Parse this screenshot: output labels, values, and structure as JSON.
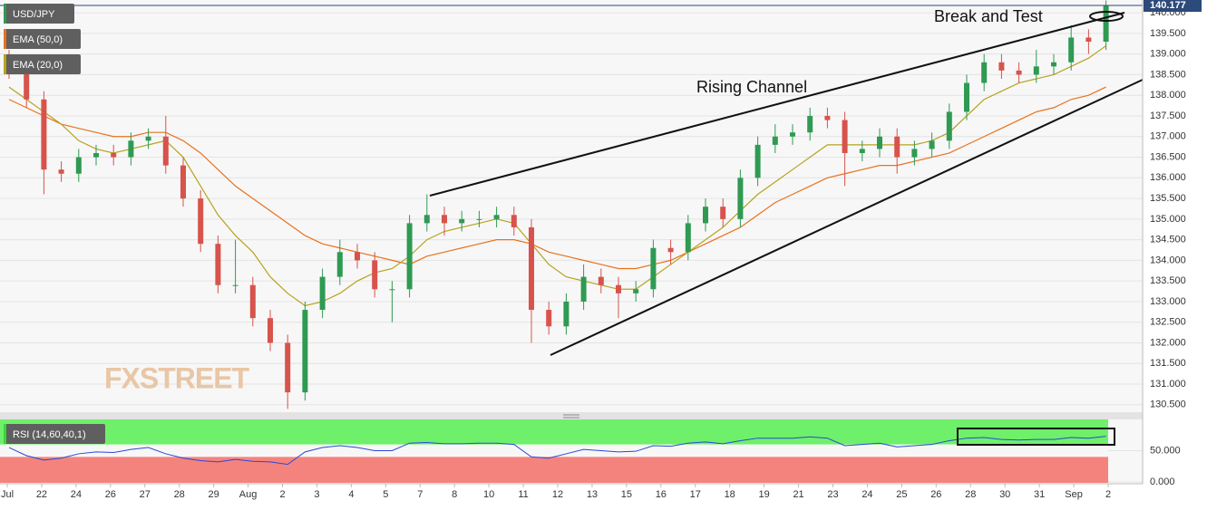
{
  "chart_data": {
    "type": "candlestick",
    "symbol": "USD/JPY",
    "last_price": {
      "value": 140.177,
      "label": "140.177"
    },
    "annotations": [
      "Break and Test",
      "Rising Channel"
    ],
    "watermark": "FXSTREET",
    "up_color": "#2f9a52",
    "down_color": "#d7534c",
    "ylim": [
      130.32,
      140.31
    ],
    "yticks": [
      {
        "value": 130.5,
        "label": "130.500"
      },
      {
        "value": 131,
        "label": "131.000"
      },
      {
        "value": 131.5,
        "label": "131.500"
      },
      {
        "value": 132,
        "label": "132.000"
      },
      {
        "value": 132.5,
        "label": "132.500"
      },
      {
        "value": 133,
        "label": "133.000"
      },
      {
        "value": 133.5,
        "label": "133.500"
      },
      {
        "value": 134,
        "label": "134.000"
      },
      {
        "value": 134.5,
        "label": "134.500"
      },
      {
        "value": 135,
        "label": "135.000"
      },
      {
        "value": 135.5,
        "label": "135.500"
      },
      {
        "value": 136,
        "label": "136.000"
      },
      {
        "value": 136.5,
        "label": "136.500"
      },
      {
        "value": 137,
        "label": "137.000"
      },
      {
        "value": 137.5,
        "label": "137.500"
      },
      {
        "value": 138,
        "label": "138.000"
      },
      {
        "value": 138.5,
        "label": "138.500"
      },
      {
        "value": 139,
        "label": "139.000"
      },
      {
        "value": 139.5,
        "label": "139.500"
      },
      {
        "value": 140,
        "label": "140.000"
      }
    ],
    "x_labels": [
      "Jul",
      "22",
      "24",
      "26",
      "27",
      "28",
      "29",
      "Aug",
      "2",
      "3",
      "4",
      "5",
      "7",
      "8",
      "10",
      "11",
      "12",
      "13",
      "15",
      "16",
      "17",
      "18",
      "19",
      "21",
      "23",
      "24",
      "25",
      "26",
      "28",
      "30",
      "31",
      "Sep",
      "2"
    ],
    "open": [
      138.9,
      138.6,
      137.9,
      136.2,
      136.1,
      136.5,
      136.6,
      136.5,
      136.9,
      137.0,
      136.3,
      135.5,
      134.4,
      133.4,
      133.4,
      132.6,
      132.0,
      130.8,
      132.8,
      133.6,
      134.2,
      134.0,
      133.3,
      133.3,
      134.9,
      135.1,
      134.9,
      135.0,
      135.0,
      135.1,
      134.8,
      132.8,
      132.4,
      133.0,
      133.6,
      133.4,
      133.2,
      133.3,
      134.3,
      134.2,
      134.9,
      135.3,
      135.0,
      136.0,
      136.8,
      137.0,
      137.1,
      137.5,
      137.4,
      136.6,
      136.7,
      137.0,
      136.5,
      136.7,
      136.9,
      137.6,
      138.3,
      138.8,
      138.6,
      138.5,
      138.7,
      138.8,
      139.4,
      139.3
    ],
    "high": [
      139.1,
      138.8,
      138.1,
      136.4,
      136.7,
      136.8,
      136.8,
      137.1,
      137.2,
      137.5,
      136.5,
      135.7,
      134.6,
      134.5,
      133.6,
      132.8,
      132.2,
      133.0,
      133.8,
      134.5,
      134.4,
      134.2,
      133.5,
      135.1,
      135.6,
      135.3,
      135.2,
      135.2,
      135.3,
      135.3,
      135.0,
      133.0,
      133.2,
      133.9,
      133.8,
      133.6,
      133.5,
      134.5,
      134.5,
      135.1,
      135.5,
      135.5,
      136.2,
      137.0,
      137.3,
      137.3,
      137.7,
      137.7,
      137.6,
      136.9,
      137.2,
      137.2,
      136.9,
      137.1,
      137.8,
      138.5,
      139.0,
      139.0,
      138.8,
      139.1,
      139.0,
      139.7,
      139.6,
      140.3
    ],
    "low": [
      138.4,
      137.7,
      135.6,
      135.9,
      135.9,
      136.3,
      136.3,
      136.3,
      136.7,
      136.1,
      135.3,
      134.2,
      133.2,
      133.2,
      132.4,
      131.8,
      130.4,
      130.6,
      132.6,
      133.4,
      133.8,
      133.1,
      132.5,
      133.1,
      134.7,
      134.6,
      134.7,
      134.8,
      134.8,
      134.6,
      132.0,
      132.2,
      132.2,
      132.8,
      133.2,
      132.6,
      133.0,
      133.1,
      133.9,
      134.0,
      134.7,
      134.8,
      134.8,
      135.8,
      136.6,
      136.8,
      136.9,
      137.2,
      135.8,
      136.4,
      136.5,
      136.1,
      136.3,
      136.5,
      136.7,
      137.4,
      138.1,
      138.4,
      138.3,
      138.3,
      138.5,
      138.6,
      139.0,
      139.1
    ],
    "close": [
      138.6,
      137.9,
      136.2,
      136.1,
      136.5,
      136.6,
      136.5,
      136.9,
      137.0,
      136.3,
      135.5,
      134.4,
      133.4,
      133.4,
      132.6,
      132.0,
      130.8,
      132.8,
      133.6,
      134.2,
      134.0,
      133.3,
      133.3,
      134.9,
      135.1,
      134.9,
      135.0,
      135.0,
      135.1,
      134.8,
      132.8,
      132.4,
      133.0,
      133.6,
      133.4,
      133.2,
      133.3,
      134.3,
      134.2,
      134.9,
      135.3,
      135.0,
      136.0,
      136.8,
      137.0,
      137.1,
      137.5,
      137.4,
      136.6,
      136.7,
      137.0,
      136.5,
      136.7,
      136.9,
      137.6,
      138.3,
      138.8,
      138.6,
      138.5,
      138.7,
      138.8,
      139.4,
      139.3,
      140.177
    ],
    "series": [
      {
        "name": "EMA (50,0)",
        "color": "#e8721c",
        "values": [
          137.9,
          137.7,
          137.5,
          137.3,
          137.2,
          137.1,
          137.0,
          137.0,
          137.1,
          137.1,
          136.9,
          136.6,
          136.2,
          135.8,
          135.5,
          135.2,
          134.9,
          134.6,
          134.4,
          134.3,
          134.2,
          134.1,
          134.0,
          133.9,
          134.1,
          134.2,
          134.3,
          134.4,
          134.5,
          134.5,
          134.4,
          134.2,
          134.1,
          134.0,
          133.9,
          133.8,
          133.8,
          133.9,
          134.0,
          134.2,
          134.4,
          134.6,
          134.8,
          135.1,
          135.4,
          135.6,
          135.8,
          136.0,
          136.1,
          136.2,
          136.3,
          136.3,
          136.4,
          136.5,
          136.6,
          136.8,
          137.0,
          137.2,
          137.4,
          137.6,
          137.7,
          137.9,
          138.0,
          138.2
        ]
      },
      {
        "name": "EMA (20,0)",
        "color": "#b5a31e",
        "values": [
          138.2,
          137.9,
          137.6,
          137.3,
          136.9,
          136.7,
          136.6,
          136.7,
          136.8,
          136.9,
          136.5,
          135.8,
          135.1,
          134.6,
          134.2,
          133.6,
          133.2,
          132.9,
          133.0,
          133.2,
          133.5,
          133.7,
          133.8,
          134.1,
          134.5,
          134.7,
          134.8,
          134.9,
          135.0,
          134.9,
          134.4,
          133.9,
          133.6,
          133.5,
          133.4,
          133.3,
          133.3,
          133.6,
          133.9,
          134.2,
          134.5,
          134.8,
          135.2,
          135.6,
          135.9,
          136.2,
          136.5,
          136.8,
          136.8,
          136.8,
          136.8,
          136.8,
          136.8,
          136.9,
          137.1,
          137.5,
          137.9,
          138.1,
          138.3,
          138.4,
          138.5,
          138.7,
          138.9,
          139.2
        ]
      }
    ],
    "rsi": {
      "name": "RSI (14,60,40,1)",
      "color": "#2b47d6",
      "ylim": [
        -1.5,
        100
      ],
      "yticks": [
        {
          "value": 0,
          "label": "0.000"
        },
        {
          "value": 50,
          "label": "50.000"
        }
      ],
      "upper": 60,
      "lower": 40,
      "values": [
        55,
        42,
        35,
        38,
        45,
        48,
        47,
        52,
        55,
        45,
        38,
        34,
        32,
        36,
        33,
        32,
        28,
        48,
        55,
        58,
        55,
        50,
        50,
        62,
        63,
        61,
        61,
        62,
        62,
        60,
        40,
        38,
        45,
        52,
        50,
        48,
        49,
        58,
        57,
        62,
        64,
        61,
        66,
        70,
        70,
        70,
        72,
        70,
        58,
        60,
        62,
        56,
        58,
        60,
        66,
        70,
        71,
        68,
        67,
        68,
        68,
        71,
        70,
        73
      ]
    }
  }
}
